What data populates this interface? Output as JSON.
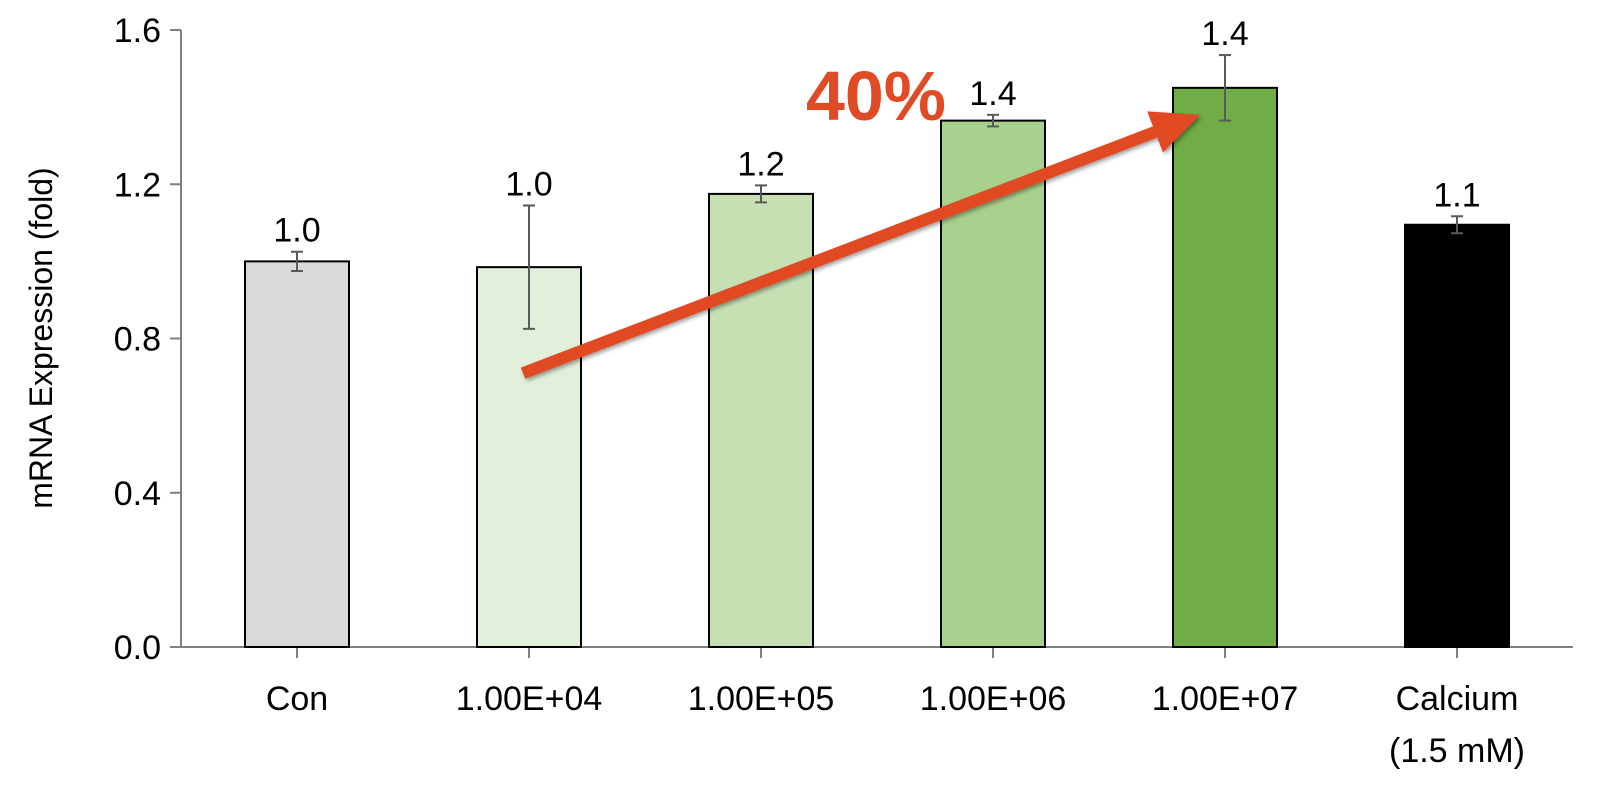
{
  "chart_data": {
    "type": "bar",
    "ylabel": "mRNA Expression (fold)",
    "xlabel": "",
    "ylim": [
      0,
      1.6
    ],
    "yticks": [
      "0.0",
      "0.4",
      "0.8",
      "1.2",
      "1.6"
    ],
    "ytick_values": [
      0,
      0.4,
      0.8,
      1.2,
      1.6
    ],
    "grid": false,
    "categories": [
      [
        "Con"
      ],
      [
        "1.00E+04"
      ],
      [
        "1.00E+05"
      ],
      [
        "1.00E+06"
      ],
      [
        "1.00E+07"
      ],
      [
        "Calcium",
        "(1.5 mM)"
      ]
    ],
    "values": [
      1.0,
      0.985,
      1.175,
      1.365,
      1.45,
      1.095
    ],
    "errors": [
      0.025,
      0.16,
      0.022,
      0.015,
      0.085,
      0.022
    ],
    "data_labels": [
      "1.0",
      "1.0",
      "1.2",
      "1.4",
      "1.4",
      "1.1"
    ],
    "colors": [
      "#d9d9d9",
      "#e2efda",
      "#c6e0b4",
      "#a9d18e",
      "#70ad47",
      "#000000"
    ],
    "annotation": {
      "text": "40%",
      "color": "#e04a24",
      "arrow_from": {
        "category_index": 1,
        "value": 0.71
      },
      "arrow_to": {
        "category_index": 4,
        "value": 1.38
      }
    }
  }
}
